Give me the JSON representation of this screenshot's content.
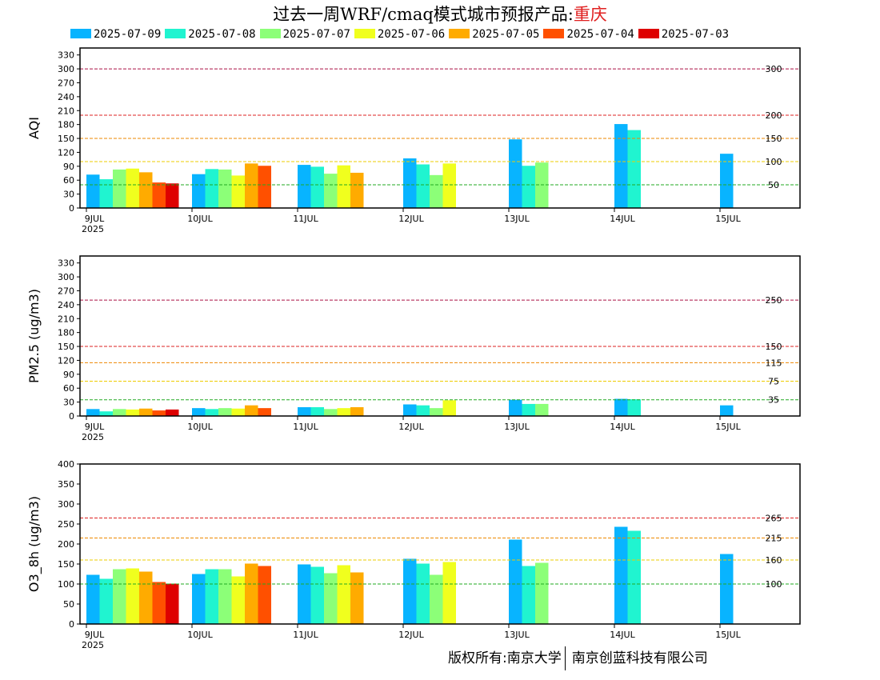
{
  "title": {
    "main": "过去一周WRF/cmaq模式城市预报产品:",
    "city": "重庆"
  },
  "legend": [
    {
      "label": "2025-07-09",
      "color": "#08b4ff"
    },
    {
      "label": "2025-07-08",
      "color": "#20f4d0"
    },
    {
      "label": "2025-07-07",
      "color": "#8cff78"
    },
    {
      "label": "2025-07-06",
      "color": "#f0ff1e"
    },
    {
      "label": "2025-07-05",
      "color": "#ffab00"
    },
    {
      "label": "2025-07-04",
      "color": "#ff5000"
    },
    {
      "label": "2025-07-03",
      "color": "#de0000"
    }
  ],
  "copyright": {
    "left": "版权所有:南京大学",
    "right": "南京创蓝科技有限公司"
  },
  "chart_data": [
    {
      "type": "bar",
      "ylabel": "AQI",
      "ylim": [
        0,
        345
      ],
      "yticks": [
        0,
        30,
        60,
        90,
        120,
        150,
        180,
        210,
        240,
        270,
        300,
        330
      ],
      "x_ticks": [
        "9JUL",
        "10JUL",
        "11JUL",
        "12JUL",
        "13JUL",
        "14JUL",
        "15JUL"
      ],
      "x_year": "2025",
      "thresholds": [
        {
          "value": 300,
          "label": "300",
          "color": "#aa1144"
        },
        {
          "value": 200,
          "label": "200",
          "color": "#dd2222"
        },
        {
          "value": 150,
          "label": "150",
          "color": "#ee8800"
        },
        {
          "value": 100,
          "label": "100",
          "color": "#eecc00"
        },
        {
          "value": 50,
          "label": "50",
          "color": "#22aa22"
        }
      ],
      "series": [
        {
          "name": "2025-07-09",
          "values": [
            72,
            73,
            93,
            107,
            148,
            181,
            117
          ]
        },
        {
          "name": "2025-07-08",
          "values": [
            62,
            84,
            89,
            94,
            91,
            168,
            null
          ]
        },
        {
          "name": "2025-07-07",
          "values": [
            83,
            83,
            74,
            71,
            98,
            null,
            null
          ]
        },
        {
          "name": "2025-07-06",
          "values": [
            85,
            70,
            92,
            96,
            null,
            null,
            null
          ]
        },
        {
          "name": "2025-07-05",
          "values": [
            77,
            96,
            76,
            null,
            null,
            null,
            null
          ]
        },
        {
          "name": "2025-07-04",
          "values": [
            55,
            91,
            null,
            null,
            null,
            null,
            null
          ]
        },
        {
          "name": "2025-07-03",
          "values": [
            53,
            null,
            null,
            null,
            null,
            null,
            null
          ]
        }
      ]
    },
    {
      "type": "bar",
      "ylabel": "PM2.5 (ug/m3)",
      "ylim": [
        0,
        345
      ],
      "yticks": [
        0,
        30,
        60,
        90,
        120,
        150,
        180,
        210,
        240,
        270,
        300,
        330
      ],
      "x_ticks": [
        "9JUL",
        "10JUL",
        "11JUL",
        "12JUL",
        "13JUL",
        "14JUL",
        "15JUL"
      ],
      "x_year": "2025",
      "thresholds": [
        {
          "value": 250,
          "label": "250",
          "color": "#aa1144"
        },
        {
          "value": 150,
          "label": "150",
          "color": "#dd2222"
        },
        {
          "value": 115,
          "label": "115",
          "color": "#ee8800"
        },
        {
          "value": 75,
          "label": "75",
          "color": "#eecc00"
        },
        {
          "value": 35,
          "label": "35",
          "color": "#22aa22"
        }
      ],
      "series": [
        {
          "name": "2025-07-09",
          "values": [
            15,
            17,
            19,
            25,
            35,
            37,
            23
          ]
        },
        {
          "name": "2025-07-08",
          "values": [
            10,
            15,
            19,
            23,
            26,
            36,
            null
          ]
        },
        {
          "name": "2025-07-07",
          "values": [
            15,
            17,
            15,
            17,
            26,
            null,
            null
          ]
        },
        {
          "name": "2025-07-06",
          "values": [
            14,
            16,
            17,
            34,
            null,
            null,
            null
          ]
        },
        {
          "name": "2025-07-05",
          "values": [
            16,
            23,
            19,
            null,
            null,
            null,
            null
          ]
        },
        {
          "name": "2025-07-04",
          "values": [
            12,
            17,
            null,
            null,
            null,
            null,
            null
          ]
        },
        {
          "name": "2025-07-03",
          "values": [
            14,
            null,
            null,
            null,
            null,
            null,
            null
          ]
        }
      ]
    },
    {
      "type": "bar",
      "ylabel": "O3_8h (ug/m3)",
      "ylim": [
        0,
        400
      ],
      "yticks": [
        0,
        50,
        100,
        150,
        200,
        250,
        300,
        350,
        400
      ],
      "x_ticks": [
        "9JUL",
        "10JUL",
        "11JUL",
        "12JUL",
        "13JUL",
        "14JUL",
        "15JUL"
      ],
      "x_year": "2025",
      "thresholds": [
        {
          "value": 265,
          "label": "265",
          "color": "#dd2222"
        },
        {
          "value": 215,
          "label": "215",
          "color": "#ee8800"
        },
        {
          "value": 160,
          "label": "160",
          "color": "#eecc00"
        },
        {
          "value": 100,
          "label": "100",
          "color": "#22aa22"
        }
      ],
      "series": [
        {
          "name": "2025-07-09",
          "values": [
            123,
            125,
            149,
            163,
            211,
            243,
            175
          ]
        },
        {
          "name": "2025-07-08",
          "values": [
            113,
            137,
            143,
            151,
            145,
            233,
            null
          ]
        },
        {
          "name": "2025-07-07",
          "values": [
            137,
            137,
            127,
            123,
            153,
            null,
            null
          ]
        },
        {
          "name": "2025-07-06",
          "values": [
            139,
            119,
            147,
            155,
            null,
            null,
            null
          ]
        },
        {
          "name": "2025-07-05",
          "values": [
            131,
            151,
            129,
            null,
            null,
            null,
            null
          ]
        },
        {
          "name": "2025-07-04",
          "values": [
            105,
            145,
            null,
            null,
            null,
            null,
            null
          ]
        },
        {
          "name": "2025-07-03",
          "values": [
            101,
            null,
            null,
            null,
            null,
            null,
            null
          ]
        }
      ]
    }
  ]
}
